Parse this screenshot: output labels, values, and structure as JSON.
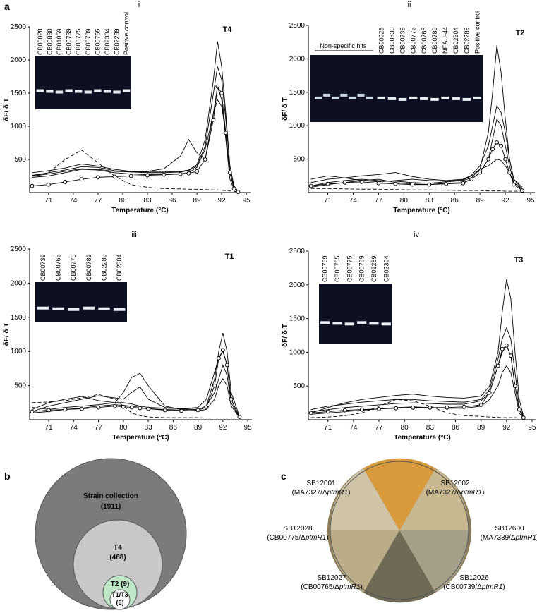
{
  "panel_labels": {
    "a": "a",
    "b": "b",
    "c": "c"
  },
  "chart_data": [
    {
      "type": "line",
      "panel": "i",
      "title": "T4",
      "x_label": "Temperature (°C)",
      "y_label": "δF/ δ T",
      "xlim": [
        68.7,
        95.5
      ],
      "xticks": [
        71,
        74,
        77,
        80,
        83,
        86,
        89,
        92,
        95
      ],
      "ylim": [
        0,
        2500
      ],
      "yticks": [
        500,
        1000,
        1500,
        2000,
        2500
      ],
      "gel_lanes": [
        "CB00028",
        "CB00830",
        "CB01059",
        "CB00739",
        "CB00775",
        "CB00789",
        "CB00765",
        "CB02304",
        "CB02289",
        "Positive control"
      ],
      "x": [
        69,
        71,
        73,
        75,
        77,
        79,
        81,
        83,
        85,
        87,
        88,
        89,
        90,
        91,
        91.5,
        92,
        92.5,
        93,
        93.5,
        94
      ],
      "series": [
        {
          "color": "#000000",
          "values": [
            260,
            300,
            340,
            390,
            380,
            330,
            310,
            300,
            300,
            310,
            330,
            400,
            700,
            1500,
            1900,
            1700,
            1100,
            400,
            100,
            20
          ]
        },
        {
          "color": "#000000",
          "values": [
            300,
            330,
            370,
            430,
            400,
            350,
            320,
            310,
            310,
            320,
            340,
            420,
            800,
            1700,
            2280,
            1900,
            1200,
            400,
            80,
            10
          ]
        },
        {
          "color": "#000000",
          "values": [
            230,
            250,
            300,
            350,
            340,
            300,
            280,
            270,
            270,
            280,
            300,
            380,
            650,
            1200,
            1400,
            1300,
            900,
            300,
            60,
            10
          ]
        },
        {
          "color": "#000000",
          "values": [
            250,
            280,
            320,
            360,
            350,
            320,
            310,
            320,
            360,
            550,
            800,
            600,
            500,
            1200,
            1600,
            1400,
            800,
            200,
            50,
            10
          ]
        },
        {
          "color": "#000000",
          "dashed": true,
          "values": [
            250,
            300,
            500,
            640,
            450,
            250,
            120,
            80,
            60,
            55,
            50,
            50,
            45,
            40,
            40,
            35,
            30,
            25,
            20,
            10
          ]
        },
        {
          "color": "#000000",
          "marker": "circle",
          "values": [
            100,
            120,
            160,
            200,
            230,
            240,
            250,
            260,
            270,
            280,
            290,
            320,
            500,
            1100,
            1600,
            1500,
            900,
            300,
            60,
            10
          ]
        }
      ]
    },
    {
      "type": "line",
      "panel": "ii",
      "title": "T2",
      "x_label": "Temperature (°C)",
      "y_label": "δF/ δ T",
      "xlim": [
        68.7,
        95.5
      ],
      "xticks": [
        71,
        74,
        77,
        80,
        83,
        86,
        89,
        92,
        95
      ],
      "ylim": [
        0,
        2500
      ],
      "yticks": [
        500,
        1000,
        1500,
        2000,
        2500
      ],
      "gel_note": "Non-specific hits",
      "gel_lanes": [
        "CB00028",
        "CB00830",
        "CB00739",
        "CB00775",
        "CB00765",
        "CB00789",
        "NEAU-44",
        "CB02304",
        "CB02289",
        "Positive control"
      ],
      "x": [
        69,
        71,
        73,
        75,
        77,
        79,
        81,
        83,
        85,
        87,
        88,
        89,
        90,
        90.5,
        91,
        91.5,
        92,
        92.5,
        93,
        94
      ],
      "series": [
        {
          "color": "#000000",
          "values": [
            100,
            150,
            180,
            200,
            180,
            170,
            150,
            140,
            160,
            180,
            220,
            350,
            900,
            1500,
            2200,
            1800,
            1100,
            500,
            200,
            50
          ]
        },
        {
          "color": "#000000",
          "values": [
            150,
            200,
            220,
            250,
            270,
            300,
            240,
            200,
            180,
            200,
            260,
            400,
            700,
            1000,
            1300,
            1200,
            900,
            500,
            200,
            80
          ]
        },
        {
          "color": "#000000",
          "values": [
            80,
            120,
            150,
            180,
            200,
            150,
            130,
            120,
            140,
            150,
            200,
            300,
            500,
            800,
            1100,
            1000,
            700,
            400,
            150,
            40
          ]
        },
        {
          "color": "#000000",
          "values": [
            200,
            250,
            220,
            180,
            160,
            180,
            200,
            180,
            170,
            190,
            250,
            350,
            400,
            450,
            500,
            480,
            400,
            300,
            150,
            50
          ]
        },
        {
          "color": "#000000",
          "dashed": true,
          "values": [
            60,
            60,
            55,
            50,
            50,
            45,
            40,
            40,
            35,
            30,
            30,
            30,
            25,
            25,
            25,
            25,
            20,
            20,
            20,
            20
          ]
        },
        {
          "color": "#000000",
          "marker": "circle",
          "values": [
            100,
            130,
            150,
            160,
            140,
            130,
            120,
            120,
            130,
            140,
            200,
            300,
            500,
            650,
            750,
            700,
            500,
            300,
            120,
            30
          ]
        }
      ]
    },
    {
      "type": "line",
      "panel": "iii",
      "title": "T1",
      "x_label": "Temperature (°C)",
      "y_label": "δF/ δ T",
      "xlim": [
        68.7,
        95.5
      ],
      "xticks": [
        71,
        74,
        77,
        80,
        83,
        86,
        89,
        92,
        95
      ],
      "ylim": [
        0,
        2500
      ],
      "yticks": [
        500,
        1000,
        1500,
        2000,
        2500
      ],
      "gel_lanes": [
        "CB00739",
        "CB00765",
        "CB00775",
        "CB00789",
        "CB02289",
        "CB02304"
      ],
      "x": [
        69,
        71,
        73,
        75,
        77,
        79,
        80,
        81,
        82,
        83,
        85,
        87,
        89,
        90,
        91,
        91.5,
        92,
        92.5,
        93,
        94
      ],
      "series": [
        {
          "color": "#000000",
          "values": [
            150,
            250,
            300,
            340,
            280,
            250,
            400,
            620,
            680,
            500,
            200,
            150,
            150,
            200,
            600,
            1000,
            1270,
            1000,
            400,
            50
          ]
        },
        {
          "color": "#000000",
          "values": [
            120,
            200,
            250,
            300,
            350,
            320,
            300,
            400,
            480,
            300,
            180,
            160,
            180,
            300,
            700,
            900,
            1000,
            800,
            300,
            40
          ]
        },
        {
          "color": "#000000",
          "values": [
            180,
            150,
            180,
            200,
            220,
            250,
            250,
            230,
            200,
            180,
            170,
            160,
            150,
            200,
            400,
            600,
            800,
            650,
            250,
            30
          ]
        },
        {
          "color": "#000000",
          "values": [
            100,
            120,
            150,
            170,
            200,
            220,
            210,
            200,
            180,
            160,
            150,
            140,
            130,
            150,
            300,
            500,
            600,
            500,
            200,
            30
          ]
        },
        {
          "color": "#000000",
          "dashed": true,
          "values": [
            250,
            260,
            280,
            320,
            370,
            300,
            200,
            100,
            60,
            40,
            30,
            30,
            30,
            25,
            25,
            25,
            25,
            25,
            25,
            25
          ]
        },
        {
          "color": "#000000",
          "marker": "circle",
          "values": [
            120,
            140,
            150,
            160,
            180,
            200,
            190,
            180,
            170,
            160,
            140,
            130,
            140,
            180,
            500,
            900,
            1020,
            800,
            300,
            40
          ]
        }
      ]
    },
    {
      "type": "line",
      "panel": "iv",
      "title": "T3",
      "x_label": "Temperature (°C)",
      "y_label": "δF/ δ T",
      "xlim": [
        68.7,
        95.5
      ],
      "xticks": [
        71,
        74,
        77,
        80,
        83,
        86,
        89,
        92,
        95
      ],
      "ylim": [
        0,
        2500
      ],
      "yticks": [
        500,
        1000,
        1500,
        2000,
        2500
      ],
      "gel_lanes": [
        "CB00739",
        "CB00765",
        "CB00775",
        "CB00789",
        "CB02289",
        "CB02304"
      ],
      "x": [
        69,
        71,
        73,
        75,
        77,
        79,
        81,
        83,
        85,
        87,
        89,
        90,
        91,
        91.5,
        92,
        92.5,
        93,
        93.5,
        94
      ],
      "series": [
        {
          "color": "#000000",
          "values": [
            100,
            180,
            250,
            300,
            330,
            360,
            380,
            350,
            330,
            320,
            350,
            500,
            1000,
            1600,
            2080,
            1800,
            1000,
            300,
            50
          ]
        },
        {
          "color": "#000000",
          "values": [
            150,
            200,
            230,
            260,
            280,
            300,
            300,
            280,
            270,
            260,
            300,
            450,
            900,
            1200,
            1360,
            1200,
            700,
            200,
            40
          ]
        },
        {
          "color": "#000000",
          "values": [
            120,
            150,
            180,
            200,
            220,
            240,
            250,
            240,
            230,
            230,
            280,
            400,
            800,
            1000,
            1100,
            950,
            500,
            150,
            30
          ]
        },
        {
          "color": "#000000",
          "values": [
            80,
            100,
            120,
            140,
            160,
            180,
            190,
            180,
            170,
            170,
            200,
            300,
            500,
            700,
            800,
            700,
            400,
            100,
            20
          ]
        },
        {
          "color": "#000000",
          "dashed": true,
          "values": [
            30,
            40,
            60,
            100,
            200,
            300,
            280,
            200,
            100,
            60,
            50,
            40,
            35,
            30,
            30,
            30,
            30,
            25,
            25
          ]
        },
        {
          "color": "#000000",
          "marker": "circle",
          "values": [
            100,
            120,
            140,
            150,
            160,
            170,
            180,
            180,
            180,
            190,
            220,
            400,
            800,
            1050,
            1100,
            950,
            500,
            150,
            30
          ]
        }
      ]
    }
  ],
  "venn": {
    "outer": {
      "label": "Strain collection",
      "count": "(1911)"
    },
    "middle": {
      "label": "T4",
      "count": "(488)"
    },
    "inner": {
      "label": "T2 (9)"
    },
    "core": {
      "label": "T1/T3",
      "count": "(6)"
    }
  },
  "plate": [
    {
      "strain": "SB12001",
      "pre": "(MA7327/Δ",
      "gene": "ptmR1",
      "post": ")"
    },
    {
      "strain": "SB12002",
      "pre": "(MA7327/Δ",
      "gene": "ptmR1",
      "post": ")"
    },
    {
      "strain": "SB12028",
      "pre": "(CB00775/Δ",
      "gene": "ptmR1",
      "post": ")"
    },
    {
      "strain": "SB12600",
      "pre": "(MA7339/Δ",
      "gene": "ptmR1",
      "post": ")"
    },
    {
      "strain": "SB12027",
      "pre": "(CB00765/Δ",
      "gene": "ptmR1",
      "post": ")"
    },
    {
      "strain": "SB12026",
      "pre": "(CB00739/Δ",
      "gene": "ptmR1",
      "post": ")"
    }
  ]
}
